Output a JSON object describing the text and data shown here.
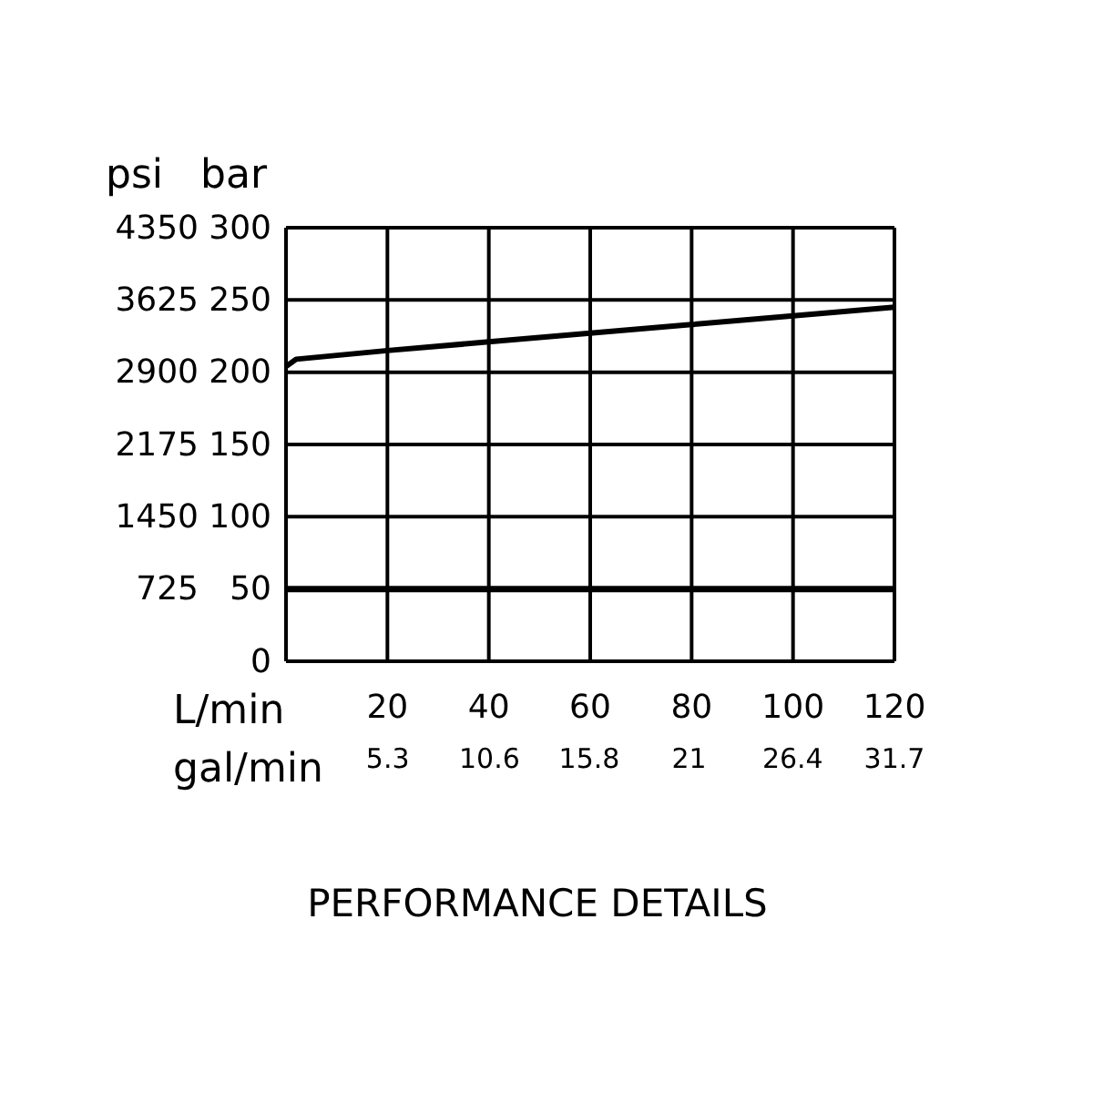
{
  "chart_data": {
    "type": "line",
    "title": "PERFORMANCE DETAILS",
    "xlabel": "L/min",
    "x2label": "gal/min",
    "ylabel": "bar",
    "y2label": "psi",
    "xlim": [
      0,
      120
    ],
    "xticks": [
      20,
      40,
      60,
      80,
      100,
      120
    ],
    "x2lim": [
      0,
      31.7
    ],
    "x2ticks": [
      5.3,
      10.6,
      15.8,
      21,
      26.4,
      31.7
    ],
    "ylim": [
      0,
      300
    ],
    "yticks": [
      0,
      50,
      100,
      150,
      200,
      250,
      300
    ],
    "y2lim": [
      0,
      4350
    ],
    "y2ticks": [
      725,
      1450,
      2175,
      2900,
      3625,
      4350
    ],
    "grid": true,
    "marker": "none",
    "line_style": "solid",
    "series": [
      {
        "color": "#000000",
        "x": [
          0,
          2,
          20,
          40,
          60,
          80,
          100,
          120
        ],
        "values": [
          204,
          209,
          215,
          221,
          227,
          233,
          239,
          245
        ]
      }
    ],
    "ref_lines": [
      {
        "axis": "y",
        "value": 50,
        "color": "#000000"
      }
    ]
  }
}
